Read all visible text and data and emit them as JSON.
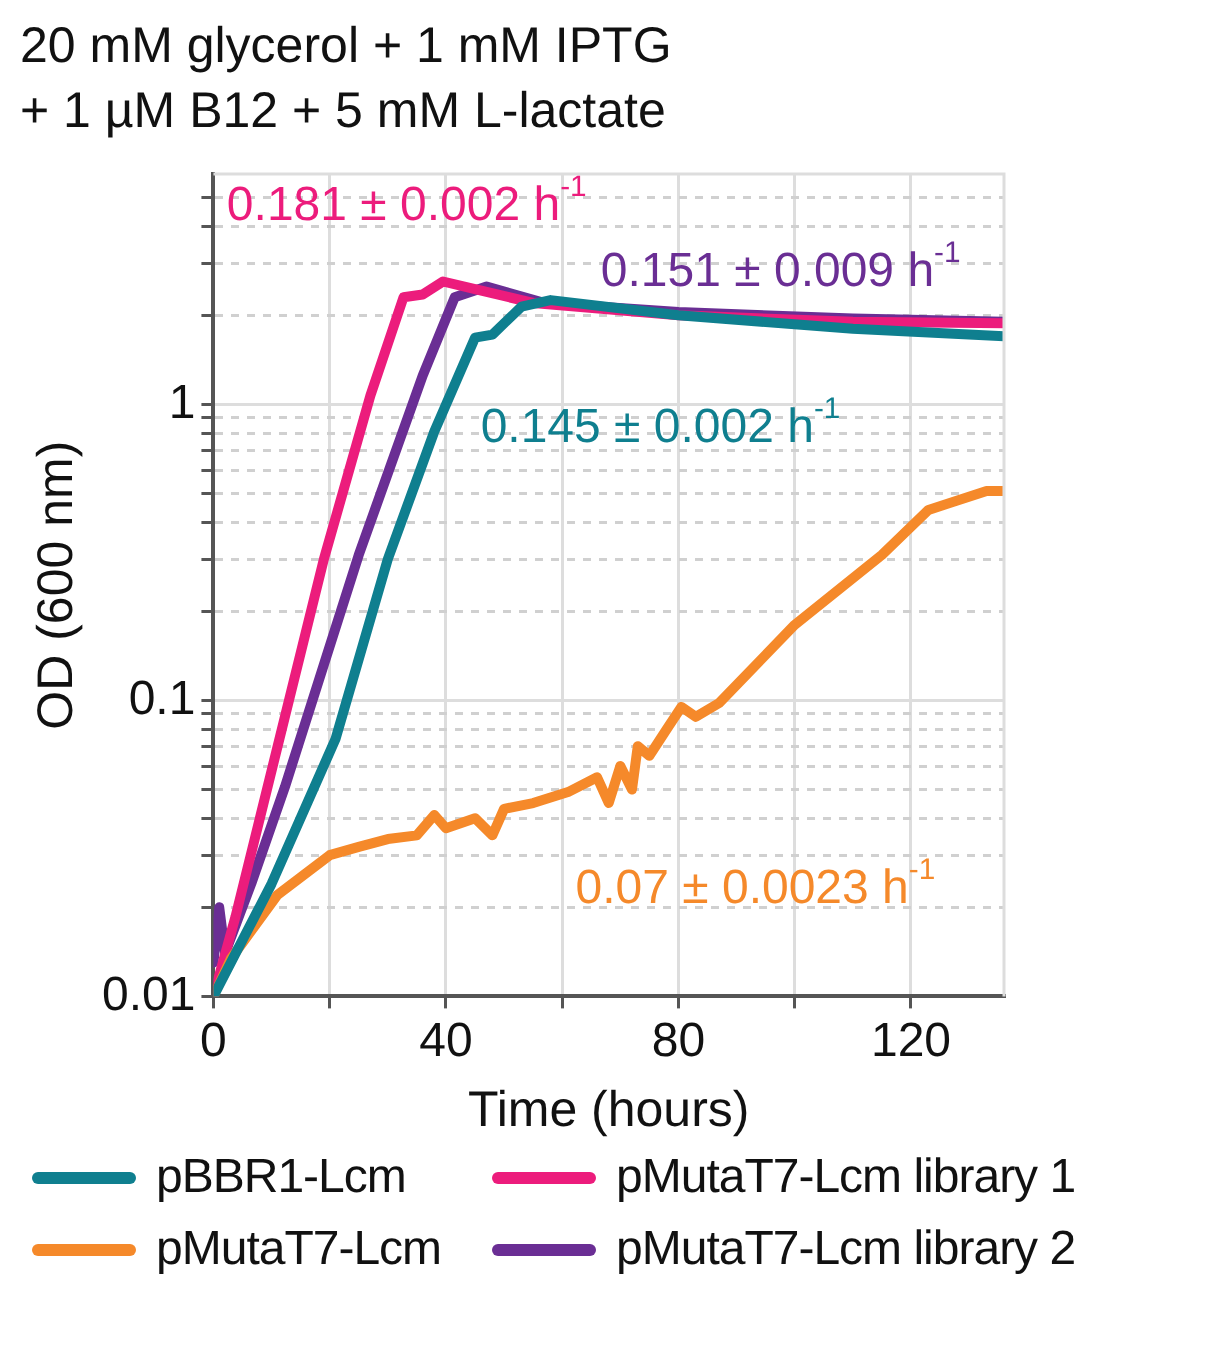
{
  "chart_data": {
    "type": "line",
    "title": [
      "20 mM glycerol + 1 mM IPTG",
      "+ 1 µM B12 + 5 mM L-lactate"
    ],
    "xlabel": "Time (hours)",
    "ylabel": "OD (600 nm)",
    "log": "y",
    "grid": true,
    "legend": "bottom",
    "marker": "none",
    "line_style": "solid",
    "xlim": [
      0,
      136
    ],
    "xticks": [
      0,
      {
        "value": 20,
        "label": null
      },
      40,
      {
        "value": 60,
        "label": null
      },
      80,
      {
        "value": 100,
        "label": null
      },
      120
    ],
    "ylim": [
      0.01,
      6
    ],
    "yticks": [
      0.01,
      {
        "value": 0.02,
        "label": null
      },
      {
        "value": 0.03,
        "label": null
      },
      {
        "value": 0.04,
        "label": null
      },
      {
        "value": 0.05,
        "label": null
      },
      {
        "value": 0.06,
        "label": null
      },
      {
        "value": 0.07,
        "label": null
      },
      {
        "value": 0.08,
        "label": null
      },
      {
        "value": 0.09,
        "label": null
      },
      0.1,
      {
        "value": 0.2,
        "label": null
      },
      {
        "value": 0.3,
        "label": null
      },
      {
        "value": 0.4,
        "label": null
      },
      {
        "value": 0.5,
        "label": null
      },
      {
        "value": 0.6,
        "label": null
      },
      {
        "value": 0.7,
        "label": null
      },
      {
        "value": 0.8,
        "label": null
      },
      {
        "value": 0.9,
        "label": null
      },
      1,
      {
        "value": 2,
        "label": null
      },
      {
        "value": 3,
        "label": null
      },
      {
        "value": 4,
        "label": null
      },
      {
        "value": 5,
        "label": null
      }
    ],
    "series": [
      {
        "name": "pBBR1-Lcm",
        "color": "#0f7f8f",
        "x": [
          0,
          10,
          21,
          30,
          38,
          45,
          48,
          53,
          58,
          80,
          110,
          136
        ],
        "values": [
          0.01,
          0.024,
          0.074,
          0.3,
          0.81,
          1.68,
          1.72,
          2.14,
          2.25,
          2.0,
          1.8,
          1.7
        ]
      },
      {
        "name": "pMutaT7-Lcm",
        "color": "#f5892a",
        "x": [
          0,
          3,
          11,
          20,
          25,
          30,
          35,
          38,
          40,
          45,
          48,
          50,
          55,
          61,
          66,
          68,
          70,
          72,
          73,
          75,
          78,
          80.5,
          83,
          87,
          100,
          115,
          123,
          133,
          136
        ],
        "values": [
          0.01,
          0.0134,
          0.022,
          0.03,
          0.032,
          0.034,
          0.035,
          0.041,
          0.037,
          0.04,
          0.035,
          0.043,
          0.045,
          0.049,
          0.055,
          0.045,
          0.06,
          0.05,
          0.07,
          0.065,
          0.08,
          0.095,
          0.088,
          0.098,
          0.18,
          0.31,
          0.44,
          0.51,
          0.51
        ]
      },
      {
        "name": "pMutaT7-Lcm library 1",
        "color": "#ec1c7c",
        "x": [
          0,
          3.8,
          19,
          27,
          32.7,
          36,
          39.5,
          45,
          55,
          80,
          110,
          136
        ],
        "values": [
          0.01,
          0.0186,
          0.3,
          1.07,
          2.3,
          2.35,
          2.6,
          2.45,
          2.2,
          2.0,
          1.9,
          1.88
        ]
      },
      {
        "name": "pMutaT7-Lcm library 2",
        "color": "#6a2e94",
        "x": [
          0,
          1,
          2,
          6.5,
          12.3,
          25,
          36,
          41.5,
          47,
          57,
          80,
          110,
          136
        ],
        "values": [
          0.013,
          0.02,
          0.014,
          0.024,
          0.051,
          0.31,
          1.25,
          2.3,
          2.5,
          2.2,
          2.05,
          1.95,
          1.9
        ]
      }
    ],
    "annotations": [
      "0.145 ± 0.002 h$^{-1}$",
      "0.07 ± 0.0023 h$^{-1}$",
      "0.181 ± 0.002 h$^{-1}$",
      "0.151 ± 0.009 h$^{-1}$"
    ]
  }
}
